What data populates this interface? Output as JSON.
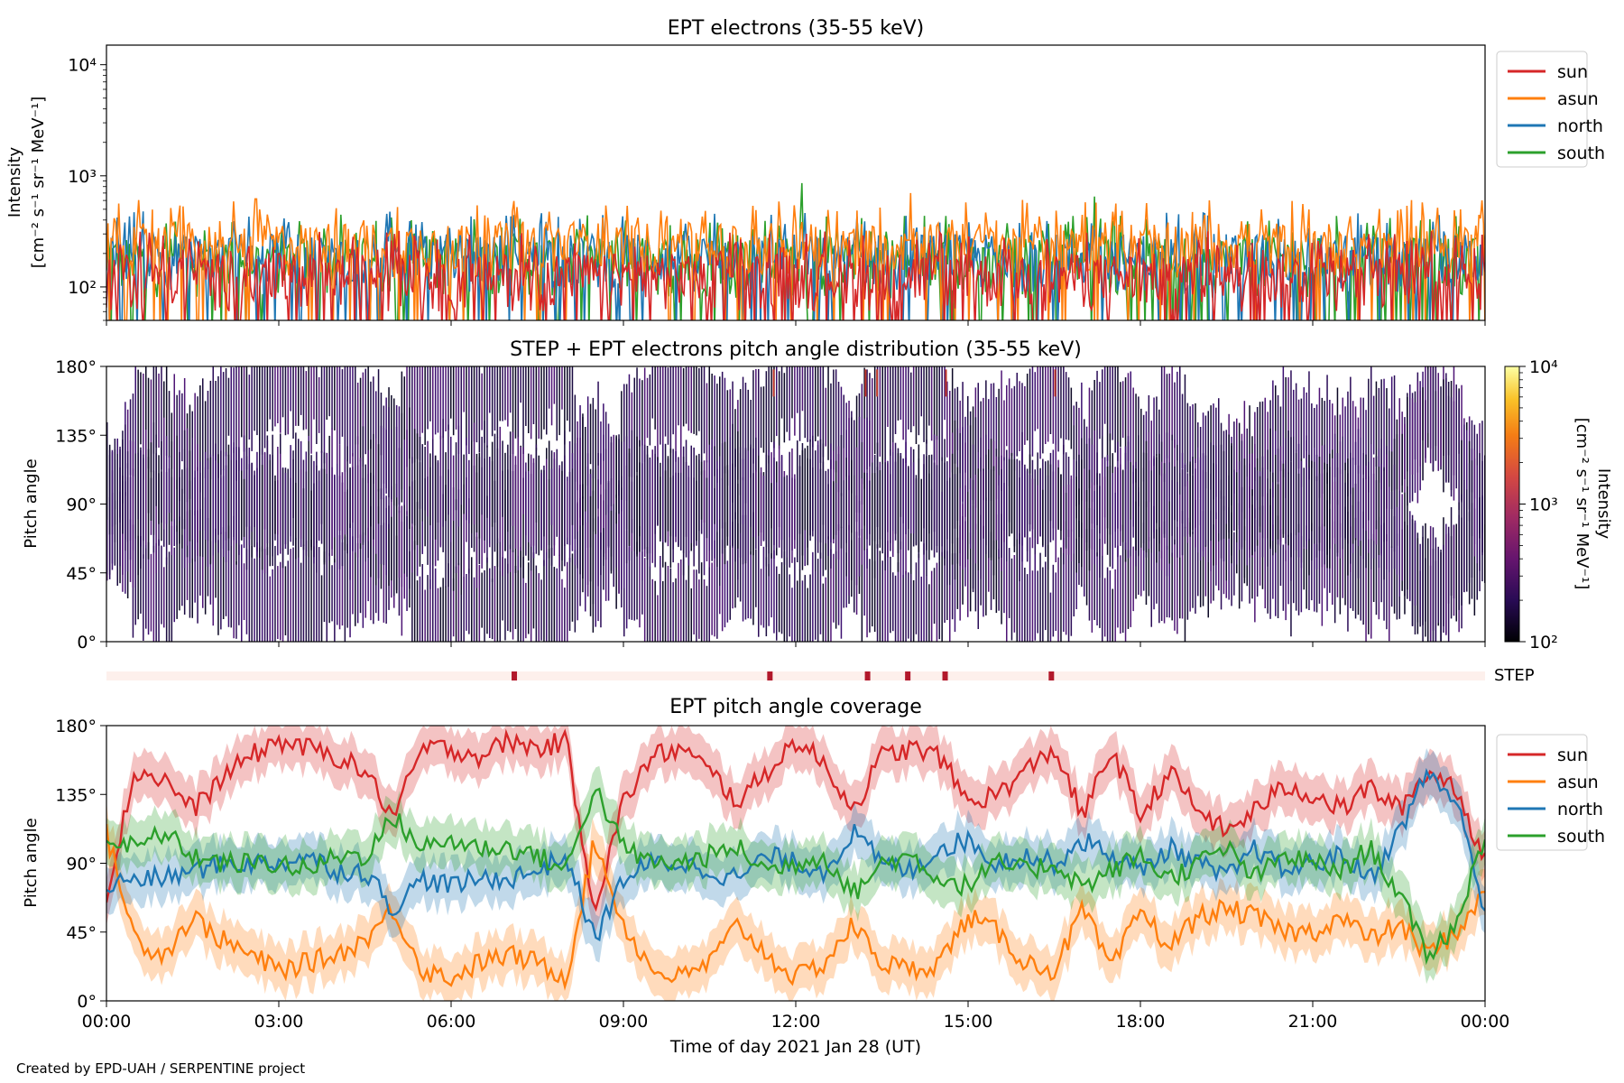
{
  "footer": "Created by EPD-UAH / SERPENTINE project",
  "colors": {
    "sun": "#d62728",
    "asun": "#ff7f0e",
    "north": "#1f77b4",
    "south": "#2ca02c",
    "step_bg": "#fdf0ec",
    "step_mark": "#b2182b"
  },
  "chart_data": [
    {
      "type": "line",
      "title": "EPT electrons (35-55 keV)",
      "ylabel_line1": "Intensity",
      "ylabel_line2": "[cm⁻² s⁻¹ sr⁻¹ MeV⁻¹]",
      "yscale": "log",
      "ylim": [
        50,
        15000
      ],
      "yticks": [
        {
          "value": 100,
          "label": "10²"
        },
        {
          "value": 1000,
          "label": "10³"
        },
        {
          "value": 10000,
          "label": "10⁴"
        }
      ],
      "xlim_hours": [
        0,
        24
      ],
      "legend_position": "outside-top-right",
      "series": [
        {
          "name": "sun",
          "color": "#d62728",
          "typical": [
            60,
            200
          ],
          "max": 550
        },
        {
          "name": "asun",
          "color": "#ff7f0e",
          "typical": [
            120,
            380
          ],
          "max": 720
        },
        {
          "name": "north",
          "color": "#1f77b4",
          "typical": [
            90,
            300
          ],
          "max": 600
        },
        {
          "name": "south",
          "color": "#2ca02c",
          "typical": [
            80,
            280
          ],
          "max": 860
        }
      ],
      "spikes": [
        {
          "series": "south",
          "hour": 12.1,
          "value": 860
        },
        {
          "series": "asun",
          "hour": 14.0,
          "value": 700
        },
        {
          "series": "asun",
          "hour": 2.6,
          "value": 620
        },
        {
          "series": "south",
          "hour": 17.2,
          "value": 650
        }
      ]
    },
    {
      "type": "heatmap",
      "title": "STEP + EPT electrons pitch angle distribution (35-55 keV)",
      "ylabel": "Pitch angle",
      "ylim": [
        0,
        180
      ],
      "yticks": [
        {
          "value": 0,
          "label": "0°"
        },
        {
          "value": 45,
          "label": "45°"
        },
        {
          "value": 90,
          "label": "90°"
        },
        {
          "value": 135,
          "label": "135°"
        },
        {
          "value": 180,
          "label": "180°"
        }
      ],
      "xlim_hours": [
        0,
        24
      ],
      "colorbar": {
        "label_line1": "Intensity",
        "label_line2": "[cm⁻² s⁻¹ sr⁻¹ MeV⁻¹]",
        "scale": "log",
        "range": [
          100,
          10000
        ],
        "ticks": [
          {
            "value": 100,
            "label": "10²"
          },
          {
            "value": 1000,
            "label": "10³"
          },
          {
            "value": 10000,
            "label": "10⁴"
          }
        ],
        "colormap": "inferno"
      },
      "typical_intensity": [
        100,
        400
      ]
    },
    {
      "type": "bar",
      "label": "STEP",
      "xlim_hours": [
        0,
        24
      ],
      "markers_hours": [
        7.1,
        11.55,
        13.25,
        13.95,
        14.6,
        16.45
      ]
    },
    {
      "type": "area",
      "title": "EPT pitch angle coverage",
      "ylabel": "Pitch angle",
      "ylim": [
        0,
        180
      ],
      "yticks": [
        {
          "value": 0,
          "label": "0°"
        },
        {
          "value": 45,
          "label": "45°"
        },
        {
          "value": 90,
          "label": "90°"
        },
        {
          "value": 135,
          "label": "135°"
        },
        {
          "value": 180,
          "label": "180°"
        }
      ],
      "xlabel": "Time of day 2021 Jan 28 (UT)",
      "xticks": [
        {
          "hour": 0,
          "label": "00:00"
        },
        {
          "hour": 3,
          "label": "03:00"
        },
        {
          "hour": 6,
          "label": "06:00"
        },
        {
          "hour": 9,
          "label": "09:00"
        },
        {
          "hour": 12,
          "label": "12:00"
        },
        {
          "hour": 15,
          "label": "15:00"
        },
        {
          "hour": 18,
          "label": "18:00"
        },
        {
          "hour": 21,
          "label": "21:00"
        },
        {
          "hour": 24,
          "label": "00:00"
        }
      ],
      "legend_position": "outside-top-right",
      "band_halfwidth_deg": 15,
      "x_hours": [
        0,
        0.5,
        1,
        1.5,
        2,
        2.5,
        3,
        3.5,
        4,
        4.5,
        5,
        5.5,
        6,
        6.5,
        7,
        7.5,
        8,
        8.5,
        9,
        9.5,
        10,
        10.5,
        11,
        11.5,
        12,
        12.5,
        13,
        13.5,
        14,
        14.5,
        15,
        15.5,
        16,
        16.5,
        17,
        17.5,
        18,
        18.5,
        19,
        19.5,
        20,
        20.5,
        21,
        21.5,
        22,
        22.5,
        23,
        23.5,
        24
      ],
      "series": [
        {
          "name": "sun",
          "color": "#d62728",
          "values": [
            70,
            150,
            145,
            125,
            145,
            160,
            170,
            165,
            160,
            150,
            120,
            165,
            165,
            160,
            170,
            165,
            170,
            60,
            130,
            160,
            165,
            150,
            130,
            150,
            170,
            155,
            125,
            160,
            165,
            160,
            130,
            135,
            150,
            165,
            120,
            165,
            120,
            150,
            125,
            110,
            125,
            140,
            135,
            125,
            140,
            125,
            150,
            140,
            90
          ]
        },
        {
          "name": "asun",
          "color": "#ff7f0e",
          "values": [
            110,
            40,
            30,
            55,
            40,
            30,
            20,
            25,
            30,
            40,
            60,
            20,
            15,
            25,
            30,
            25,
            15,
            105,
            50,
            20,
            15,
            25,
            50,
            30,
            15,
            25,
            50,
            25,
            20,
            25,
            55,
            45,
            25,
            20,
            60,
            20,
            60,
            35,
            55,
            60,
            55,
            45,
            45,
            55,
            40,
            50,
            30,
            45,
            70
          ]
        },
        {
          "name": "north",
          "color": "#1f77b4",
          "values": [
            75,
            80,
            80,
            85,
            90,
            90,
            90,
            95,
            85,
            85,
            60,
            80,
            75,
            80,
            80,
            85,
            95,
            40,
            80,
            90,
            90,
            85,
            80,
            95,
            90,
            85,
            110,
            90,
            85,
            100,
            105,
            90,
            95,
            90,
            105,
            95,
            85,
            100,
            90,
            80,
            100,
            85,
            90,
            95,
            80,
            110,
            150,
            130,
            60
          ]
        },
        {
          "name": "south",
          "color": "#2ca02c",
          "values": [
            105,
            100,
            110,
            95,
            90,
            90,
            90,
            85,
            95,
            95,
            120,
            100,
            105,
            100,
            100,
            95,
            85,
            140,
            100,
            90,
            90,
            95,
            100,
            85,
            90,
            95,
            70,
            90,
            95,
            80,
            75,
            90,
            85,
            90,
            75,
            85,
            95,
            80,
            90,
            100,
            80,
            95,
            90,
            85,
            100,
            70,
            30,
            50,
            110
          ]
        }
      ]
    }
  ]
}
